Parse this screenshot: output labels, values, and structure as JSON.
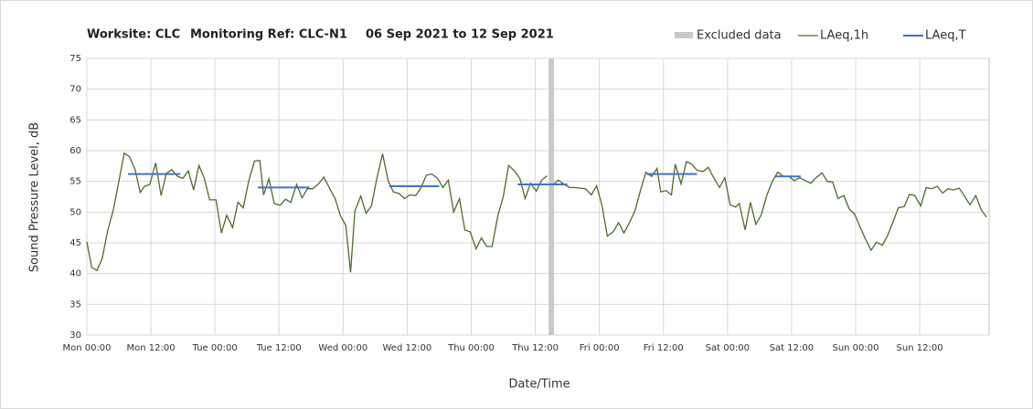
{
  "chart_data": {
    "type": "line",
    "title": [
      "Worksite: CLC",
      "Monitoring Ref: CLC-N1",
      "06 Sep 2021 to 12 Sep 2021"
    ],
    "x_label": "Date/Time",
    "y_label": "Sound Pressure Level, dB",
    "xlim": [
      0,
      169
    ],
    "xticks": [
      {
        "value": 0,
        "label": "Mon 00:00"
      },
      {
        "value": 12,
        "label": "Mon 12:00"
      },
      {
        "value": 24,
        "label": "Tue 00:00"
      },
      {
        "value": 36,
        "label": "Tue 12:00"
      },
      {
        "value": 48,
        "label": "Wed 00:00"
      },
      {
        "value": 60,
        "label": "Wed 12:00"
      },
      {
        "value": 72,
        "label": "Thu 00:00"
      },
      {
        "value": 84,
        "label": "Thu 12:00"
      },
      {
        "value": 96,
        "label": "Fri 00:00"
      },
      {
        "value": 108,
        "label": "Fri 12:00"
      },
      {
        "value": 120,
        "label": "Sat 00:00"
      },
      {
        "value": 132,
        "label": "Sat 12:00"
      },
      {
        "value": 144,
        "label": "Sun 00:00"
      },
      {
        "value": 156,
        "label": "Sun 12:00"
      }
    ],
    "ylim": [
      30,
      75
    ],
    "yticks": [
      30,
      35,
      40,
      45,
      50,
      55,
      60,
      65,
      70,
      75
    ],
    "grid": true,
    "excluded": {
      "name": "Excluded data",
      "color": "#c8c8c8",
      "start": 86.5,
      "end": 87.5
    },
    "series": [
      {
        "name": "LAeq,1h",
        "color": "#4f6b2e",
        "x": [
          0,
          0.9,
          1.9,
          2.9,
          3.9,
          5,
          6,
          7,
          8,
          9,
          10,
          10.8,
          11.8,
          12.9,
          13.9,
          14.9,
          15.9,
          17,
          18,
          19,
          20,
          21,
          22,
          23,
          24.2,
          25.2,
          26.2,
          27.3,
          28.3,
          29.3,
          30.3,
          31.4,
          32.4,
          33.1,
          34.1,
          35.1,
          36.2,
          37.2,
          38.2,
          39.3,
          40.3,
          41.3,
          42.3,
          43.4,
          44.4,
          45.4,
          46.5,
          47.5,
          48.5,
          49.4,
          50.2,
          51.3,
          52.3,
          53.3,
          54.3,
          55.4,
          56.4,
          57.4,
          58.5,
          59.5,
          60.5,
          61.6,
          62.6,
          63.6,
          64.6,
          65.7,
          66.7,
          67.7,
          68.7,
          69.8,
          70.8,
          71.8,
          72.9,
          73.9,
          74.9,
          75.9,
          77,
          78,
          79,
          80.1,
          81.1,
          82.1,
          83.1,
          84.2,
          85.2,
          86.2,
          87,
          87.3,
          88.3,
          89.3,
          90.4,
          91.4,
          92.4,
          93.4,
          94.5,
          95.5,
          96.5,
          97.5,
          98.6,
          99.6,
          100.6,
          101.7,
          102.7,
          103.7,
          104.7,
          105.8,
          106.8,
          107.5,
          108.5,
          109.5,
          110.2,
          111.3,
          112.3,
          113.3,
          114.3,
          115.4,
          116.4,
          117.4,
          118.5,
          119.5,
          120.5,
          121.5,
          122.2,
          123.3,
          124.3,
          125.3,
          126.3,
          127.4,
          128.4,
          129.4,
          130.5,
          131.5,
          132.5,
          133.5,
          134.6,
          135.6,
          136.6,
          137.7,
          138.7,
          139.7,
          140.7,
          141.8,
          142.8,
          143.8,
          144.9,
          145.9,
          146.9,
          147.9,
          149,
          150,
          151,
          152,
          153.1,
          154.1,
          155.1,
          156.2,
          157.2,
          158.2,
          159.3,
          160.3,
          161.3,
          162.3,
          163.4,
          164.4,
          165.4,
          166.5,
          167.5,
          168.5
        ],
        "values": [
          45.2,
          41,
          40.5,
          42.5,
          47,
          50.5,
          55,
          59.6,
          59,
          57,
          53.2,
          54.2,
          54.5,
          58,
          52.7,
          56.3,
          56.9,
          55.8,
          55.5,
          56.7,
          53.6,
          57.6,
          55.5,
          52,
          52,
          46.6,
          49.5,
          47.5,
          51.6,
          50.7,
          55,
          58.3,
          58.4,
          52.8,
          55.4,
          51.4,
          51.1,
          52.1,
          51.6,
          54.5,
          52.3,
          53.8,
          53.8,
          54.6,
          55.7,
          54,
          52.2,
          49.4,
          47.8,
          40.2,
          50.2,
          52.6,
          49.8,
          51,
          55.4,
          59.5,
          55.2,
          53.3,
          53,
          52.2,
          52.8,
          52.7,
          54,
          56,
          56.2,
          55.5,
          54,
          55.2,
          50,
          52.2,
          47.1,
          46.8,
          44,
          45.8,
          44.4,
          44.4,
          49.5,
          52.5,
          57.6,
          56.7,
          55.5,
          52.2,
          54.7,
          53.4,
          55.2,
          55.9,
          null,
          54.4,
          55.2,
          54.6,
          54,
          54,
          53.9,
          53.8,
          52.8,
          54.3,
          51,
          46.1,
          46.8,
          48.3,
          46.6,
          48.4,
          50.3,
          53.5,
          56.5,
          55.8,
          57.1,
          53.3,
          53.5,
          52.8,
          57.8,
          54.6,
          58.2,
          57.8,
          56.8,
          56.6,
          57.3,
          55.6,
          54,
          55.6,
          51.2,
          50.8,
          51.4,
          47.1,
          51.6,
          48,
          49.5,
          52.8,
          55,
          56.5,
          55.8,
          55.8,
          55.1,
          55.6,
          55.1,
          54.7,
          55.6,
          56.4,
          55,
          54.9,
          52.2,
          52.7,
          50.5,
          49.7,
          47.4,
          45.5,
          43.8,
          45.1,
          44.6,
          46.2,
          48.4,
          50.7,
          50.9,
          52.9,
          52.7,
          51,
          54,
          53.8,
          54.2,
          53.1,
          53.8,
          53.6,
          53.9,
          52.6,
          51.2,
          52.7,
          50.4,
          49.2
        ]
      },
      {
        "name": "LAeq,T",
        "color": "#4472c4",
        "segments": [
          {
            "start": 7.7,
            "end": 17.5,
            "value": 56.2
          },
          {
            "start": 32,
            "end": 41.7,
            "value": 54
          },
          {
            "start": 56.6,
            "end": 66,
            "value": 54.2
          },
          {
            "start": 80.7,
            "end": 90,
            "value": 54.5
          },
          {
            "start": 104.9,
            "end": 114.3,
            "value": 56.2
          },
          {
            "start": 129,
            "end": 133.7,
            "value": 55.8
          }
        ]
      }
    ]
  }
}
